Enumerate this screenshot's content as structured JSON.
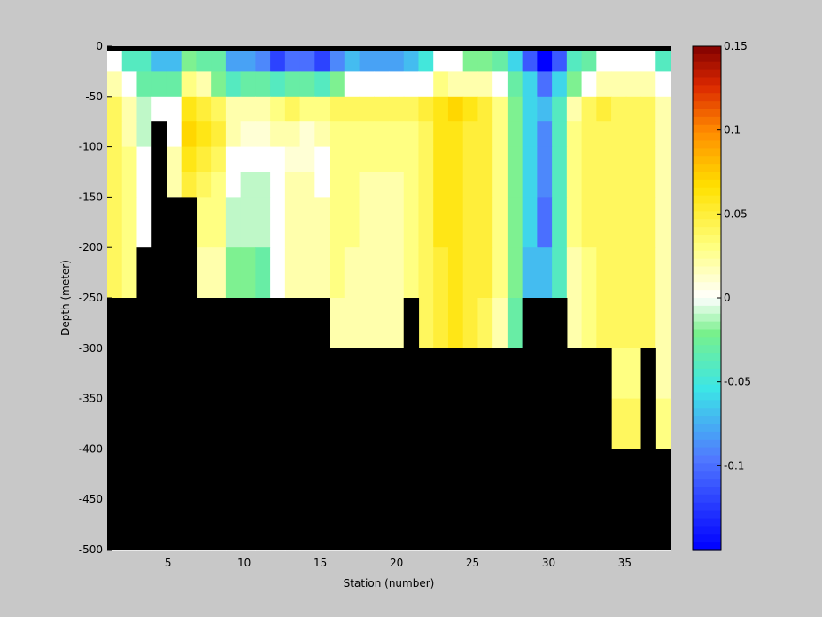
{
  "chart_data": {
    "type": "heatmap",
    "title": "",
    "xlabel": "Station (number)",
    "ylabel": "Depth (meter)",
    "xlim": [
      1,
      38
    ],
    "ylim": [
      -500,
      0
    ],
    "x_ticks": [
      5,
      10,
      15,
      20,
      25,
      30,
      35
    ],
    "y_ticks": [
      0,
      -50,
      -100,
      -150,
      -200,
      -250,
      -300,
      -350,
      -400,
      -450,
      -500
    ],
    "colorbar": {
      "range": [
        -0.15,
        0.15
      ],
      "ticks": [
        0.15,
        0.1,
        0.05,
        0,
        -0.05,
        -0.1
      ],
      "tick_labels": [
        "0.15",
        "0.1",
        "0.05",
        "0",
        "-0.05",
        "-0.1"
      ],
      "colormap": "jet-like with white at 0"
    },
    "mask_color": "#000000",
    "stations": [
      1,
      2,
      3,
      4,
      5,
      6,
      7,
      8,
      9,
      10,
      11,
      12,
      13,
      14,
      15,
      16,
      17,
      18,
      19,
      20,
      21,
      22,
      23,
      24,
      25,
      26,
      27,
      28,
      29,
      30,
      31,
      32,
      33,
      34,
      35,
      36,
      37,
      38
    ],
    "depth_bins": [
      0,
      -12.5,
      -25,
      -50,
      -75,
      -100,
      -125,
      -150,
      -200,
      -250,
      -300,
      -350,
      -400,
      -450,
      -500
    ],
    "bottom_depth": [
      -250,
      -250,
      -200,
      -75,
      -150,
      -150,
      -250,
      -250,
      -250,
      -250,
      -250,
      -250,
      -250,
      -250,
      -250,
      -300,
      -300,
      -300,
      -300,
      -300,
      -250,
      -300,
      -300,
      -300,
      -300,
      -300,
      -300,
      -300,
      -250,
      -250,
      -250,
      -300,
      -300,
      -300,
      -400,
      -400,
      -300,
      -400
    ],
    "values": [
      [
        0.0,
        -0.04,
        -0.04,
        -0.07,
        -0.07,
        -0.02,
        -0.03,
        -0.03,
        -0.08,
        -0.08,
        -0.09,
        -0.12,
        -0.1,
        -0.1,
        -0.12,
        -0.09,
        -0.07,
        -0.08,
        -0.08,
        -0.08,
        -0.07,
        -0.05,
        0.0,
        0.0,
        -0.02,
        -0.02,
        -0.03,
        -0.06,
        -0.11,
        -0.15,
        -0.11,
        -0.04,
        -0.03,
        0.0,
        0.0,
        0.0,
        0.0,
        -0.04
      ],
      [
        0.0,
        -0.04,
        -0.04,
        -0.07,
        -0.07,
        -0.02,
        -0.03,
        -0.03,
        -0.08,
        -0.08,
        -0.09,
        -0.12,
        -0.1,
        -0.1,
        -0.12,
        -0.09,
        -0.07,
        -0.08,
        -0.08,
        -0.08,
        -0.07,
        -0.05,
        0.0,
        0.0,
        -0.02,
        -0.02,
        -0.03,
        -0.06,
        -0.11,
        -0.15,
        -0.11,
        -0.04,
        -0.03,
        0.0,
        0.0,
        0.0,
        0.0,
        -0.04
      ],
      [
        0.02,
        0.0,
        -0.03,
        -0.03,
        -0.03,
        0.03,
        0.02,
        -0.02,
        -0.04,
        -0.03,
        -0.03,
        -0.04,
        -0.03,
        -0.03,
        -0.04,
        -0.02,
        0.0,
        0.0,
        0.0,
        0.0,
        0.0,
        0.0,
        0.03,
        0.02,
        0.02,
        0.02,
        0.0,
        -0.03,
        -0.06,
        -0.1,
        -0.06,
        -0.02,
        0.0,
        0.02,
        0.02,
        0.02,
        0.02,
        0.0
      ],
      [
        0.04,
        0.02,
        -0.01,
        0.0,
        0.0,
        0.06,
        0.05,
        0.04,
        0.02,
        0.02,
        0.02,
        0.03,
        0.04,
        0.03,
        0.03,
        0.04,
        0.04,
        0.04,
        0.04,
        0.04,
        0.04,
        0.05,
        0.06,
        0.07,
        0.06,
        0.05,
        0.03,
        -0.02,
        -0.06,
        -0.07,
        -0.04,
        0.02,
        0.04,
        0.05,
        0.04,
        0.04,
        0.04,
        0.02
      ],
      [
        0.04,
        0.02,
        -0.01,
        0.0,
        0.0,
        0.07,
        0.06,
        0.05,
        0.02,
        0.01,
        0.01,
        0.02,
        0.02,
        0.01,
        0.02,
        0.03,
        0.03,
        0.03,
        0.03,
        0.03,
        0.03,
        0.04,
        0.06,
        0.06,
        0.05,
        0.05,
        0.03,
        -0.02,
        -0.06,
        -0.09,
        -0.04,
        0.03,
        0.04,
        0.04,
        0.04,
        0.04,
        0.04,
        0.02
      ],
      [
        0.04,
        0.03,
        0.0,
        0.0,
        0.02,
        0.06,
        0.05,
        0.04,
        0.0,
        0.0,
        0.0,
        0.0,
        0.01,
        0.01,
        0.0,
        0.03,
        0.03,
        0.03,
        0.03,
        0.03,
        0.03,
        0.04,
        0.06,
        0.06,
        0.05,
        0.05,
        0.03,
        -0.02,
        -0.06,
        -0.09,
        -0.04,
        0.03,
        0.04,
        0.04,
        0.04,
        0.04,
        0.04,
        0.02
      ],
      [
        0.04,
        0.03,
        0.0,
        0.0,
        0.02,
        0.05,
        0.04,
        0.03,
        0.0,
        -0.01,
        -0.01,
        0.0,
        0.02,
        0.02,
        0.0,
        0.03,
        0.03,
        0.02,
        0.02,
        0.02,
        0.03,
        0.04,
        0.06,
        0.06,
        0.05,
        0.05,
        0.03,
        -0.02,
        -0.06,
        -0.09,
        -0.04,
        0.03,
        0.04,
        0.04,
        0.04,
        0.04,
        0.04,
        0.02
      ],
      [
        0.04,
        0.03,
        0.0,
        0.0,
        0.0,
        0.03,
        0.03,
        0.03,
        -0.01,
        -0.01,
        -0.01,
        0.0,
        0.02,
        0.02,
        0.02,
        0.03,
        0.03,
        0.02,
        0.02,
        0.02,
        0.03,
        0.04,
        0.06,
        0.06,
        0.05,
        0.05,
        0.03,
        -0.02,
        -0.06,
        -0.1,
        -0.04,
        0.03,
        0.04,
        0.04,
        0.04,
        0.04,
        0.04,
        0.02
      ],
      [
        0.04,
        0.03,
        0.0,
        0.0,
        0.0,
        0.03,
        0.02,
        0.02,
        -0.02,
        -0.02,
        -0.03,
        0.0,
        0.02,
        0.02,
        0.02,
        0.03,
        0.02,
        0.02,
        0.02,
        0.02,
        0.03,
        0.04,
        0.05,
        0.06,
        0.05,
        0.05,
        0.03,
        -0.02,
        -0.07,
        -0.07,
        -0.04,
        0.02,
        0.03,
        0.04,
        0.04,
        0.04,
        0.04,
        0.02
      ],
      [
        0.03,
        0.0,
        0.0,
        0.0,
        0.0,
        0.0,
        0.02,
        0.02,
        -0.03,
        -0.03,
        -0.03,
        0.02,
        0.03,
        0.02,
        0.02,
        0.02,
        0.02,
        0.02,
        0.02,
        0.02,
        0.03,
        0.04,
        0.05,
        0.06,
        0.05,
        0.04,
        0.02,
        -0.03,
        -0.07,
        -0.07,
        -0.04,
        0.02,
        0.03,
        0.04,
        0.04,
        0.04,
        0.04,
        0.02
      ],
      [
        0.0,
        0.0,
        0.0,
        0.0,
        0.0,
        0.0,
        0.0,
        0.0,
        0.0,
        0.0,
        0.0,
        0.0,
        0.0,
        0.0,
        0.0,
        0.03,
        0.03,
        0.03,
        0.02,
        0.03,
        0.0,
        0.03,
        0.05,
        0.06,
        0.05,
        0.04,
        0.04,
        0.02,
        0.0,
        0.0,
        0.0,
        0.03,
        0.03,
        0.04,
        0.03,
        0.03,
        0.03,
        0.02
      ],
      [
        0.0,
        0.0,
        0.0,
        0.0,
        0.0,
        0.0,
        0.0,
        0.0,
        0.0,
        0.0,
        0.0,
        0.0,
        0.0,
        0.0,
        0.0,
        0.0,
        0.0,
        0.0,
        0.0,
        0.0,
        0.0,
        0.0,
        0.0,
        0.0,
        0.0,
        0.0,
        0.0,
        0.0,
        0.0,
        0.0,
        0.0,
        0.0,
        0.0,
        0.0,
        0.04,
        0.04,
        0.0,
        0.03
      ],
      [
        0.0,
        0.0,
        0.0,
        0.0,
        0.0,
        0.0,
        0.0,
        0.0,
        0.0,
        0.0,
        0.0,
        0.0,
        0.0,
        0.0,
        0.0,
        0.0,
        0.0,
        0.0,
        0.0,
        0.0,
        0.0,
        0.0,
        0.0,
        0.0,
        0.0,
        0.0,
        0.0,
        0.0,
        0.0,
        0.0,
        0.0,
        0.0,
        0.0,
        0.0,
        0.04,
        0.04,
        0.0,
        0.03
      ],
      [
        0.0,
        0.0,
        0.0,
        0.0,
        0.0,
        0.0,
        0.0,
        0.0,
        0.0,
        0.0,
        0.0,
        0.0,
        0.0,
        0.0,
        0.0,
        0.0,
        0.0,
        0.0,
        0.0,
        0.0,
        0.0,
        0.0,
        0.0,
        0.0,
        0.0,
        0.0,
        0.0,
        0.0,
        0.0,
        0.0,
        0.0,
        0.0,
        0.0,
        0.0,
        0.0,
        0.0,
        0.0,
        0.0
      ]
    ]
  }
}
